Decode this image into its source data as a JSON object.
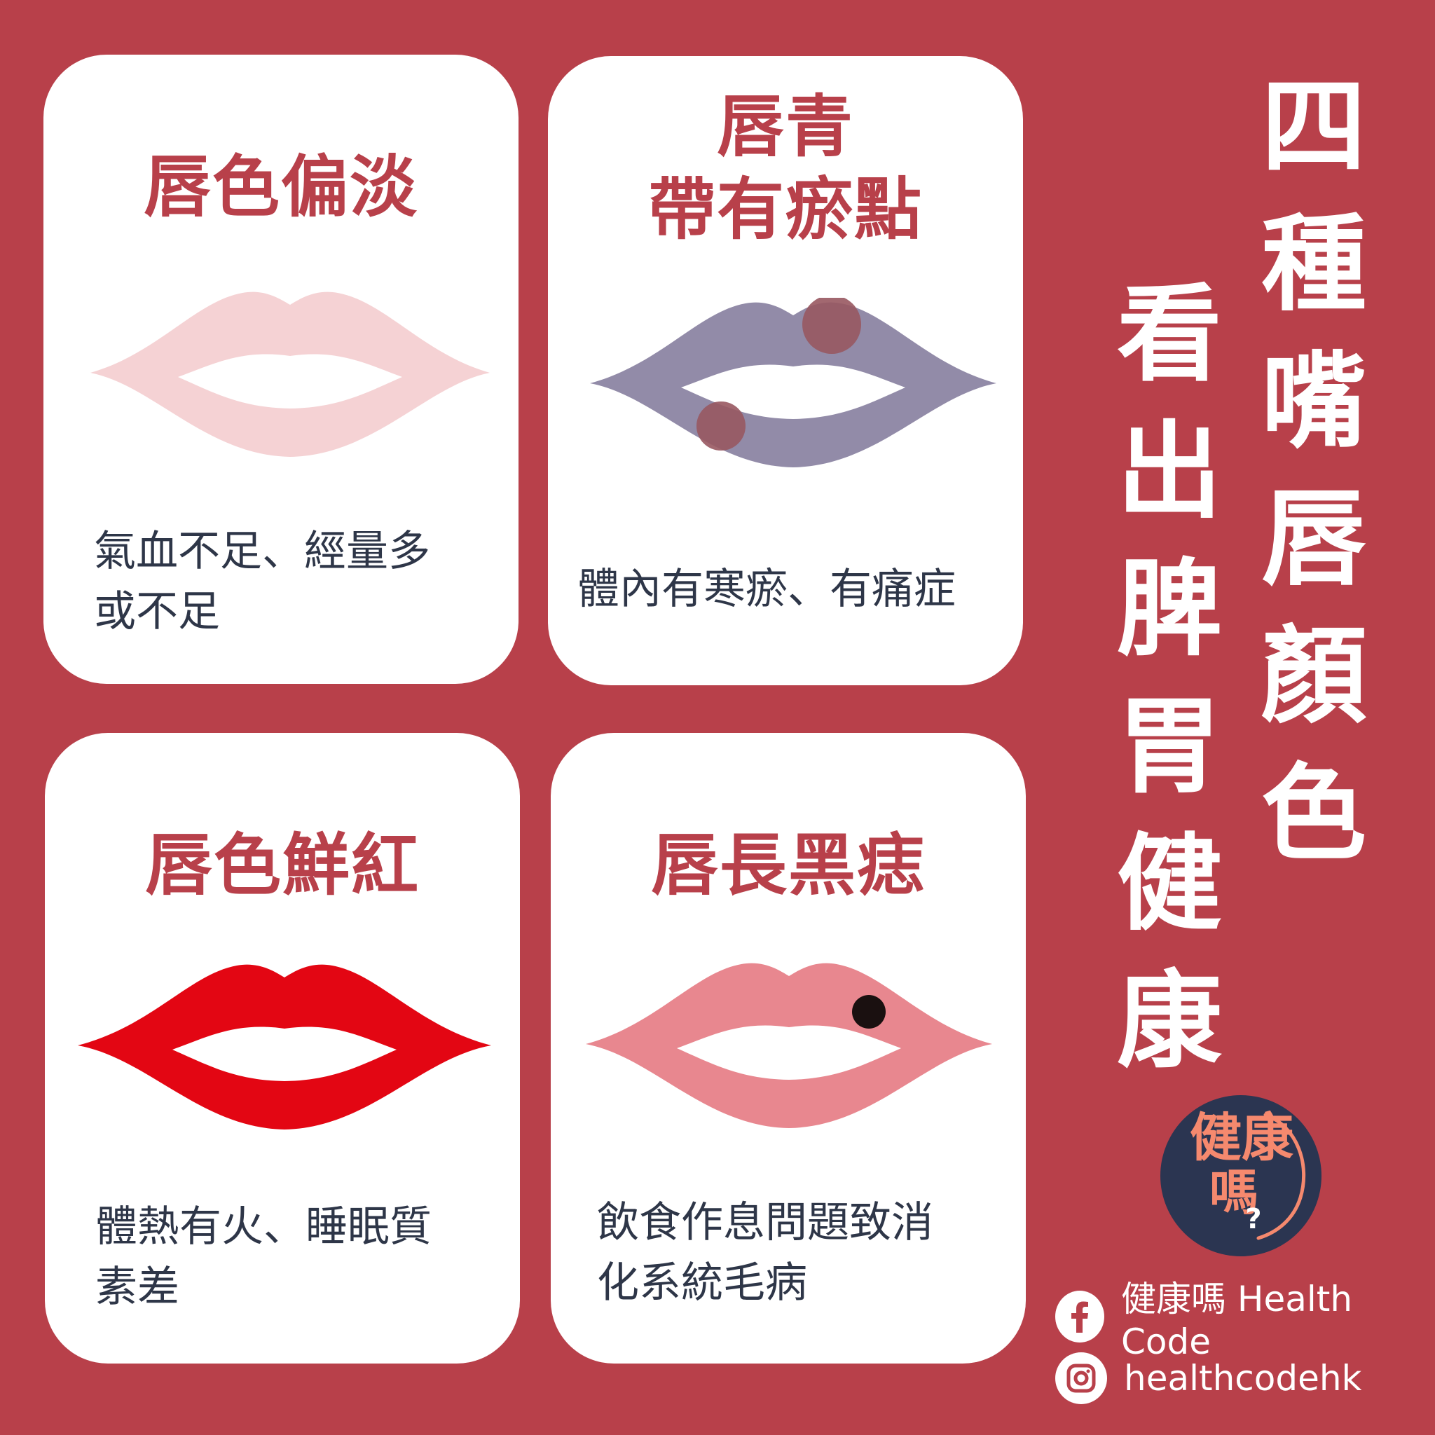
{
  "headline": {
    "column1": [
      "四",
      "種",
      "嘴",
      "唇",
      "顏",
      "色"
    ],
    "column2": [
      "看",
      "出",
      "脾",
      "胃",
      "健",
      "康"
    ]
  },
  "cards": [
    {
      "title_lines": [
        "唇色偏淡"
      ],
      "desc_lines": [
        "氣血不足、經量多",
        "或不足"
      ],
      "lip_color": "#f5d2d4"
    },
    {
      "title_lines": [
        "唇青",
        "帶有瘀點"
      ],
      "desc_lines": [
        "體內有寒瘀、有痛症"
      ],
      "lip_color": "#928ba8",
      "spot_color": "#985860"
    },
    {
      "title_lines": [
        "唇色鮮紅"
      ],
      "desc_lines": [
        "體熱有火、睡眠質",
        "素差"
      ],
      "lip_color": "#e30613"
    },
    {
      "title_lines": [
        "唇長黑痣"
      ],
      "desc_lines": [
        "飲食作息問題致消",
        "化系統毛病"
      ],
      "lip_color": "#e8878f",
      "mole_color": "#1a1010"
    }
  ],
  "logo": {
    "line1": "健康",
    "line2": "嗎",
    "mark": "?"
  },
  "social": {
    "facebook_icon": "facebook-icon",
    "facebook_text": "健康嗎 Health Code",
    "instagram_icon": "instagram-icon",
    "instagram_text": "healthcodehk"
  },
  "colors": {
    "background": "#b8404a",
    "card": "#ffffff",
    "title": "#b8404a",
    "desc": "#2e3648"
  }
}
